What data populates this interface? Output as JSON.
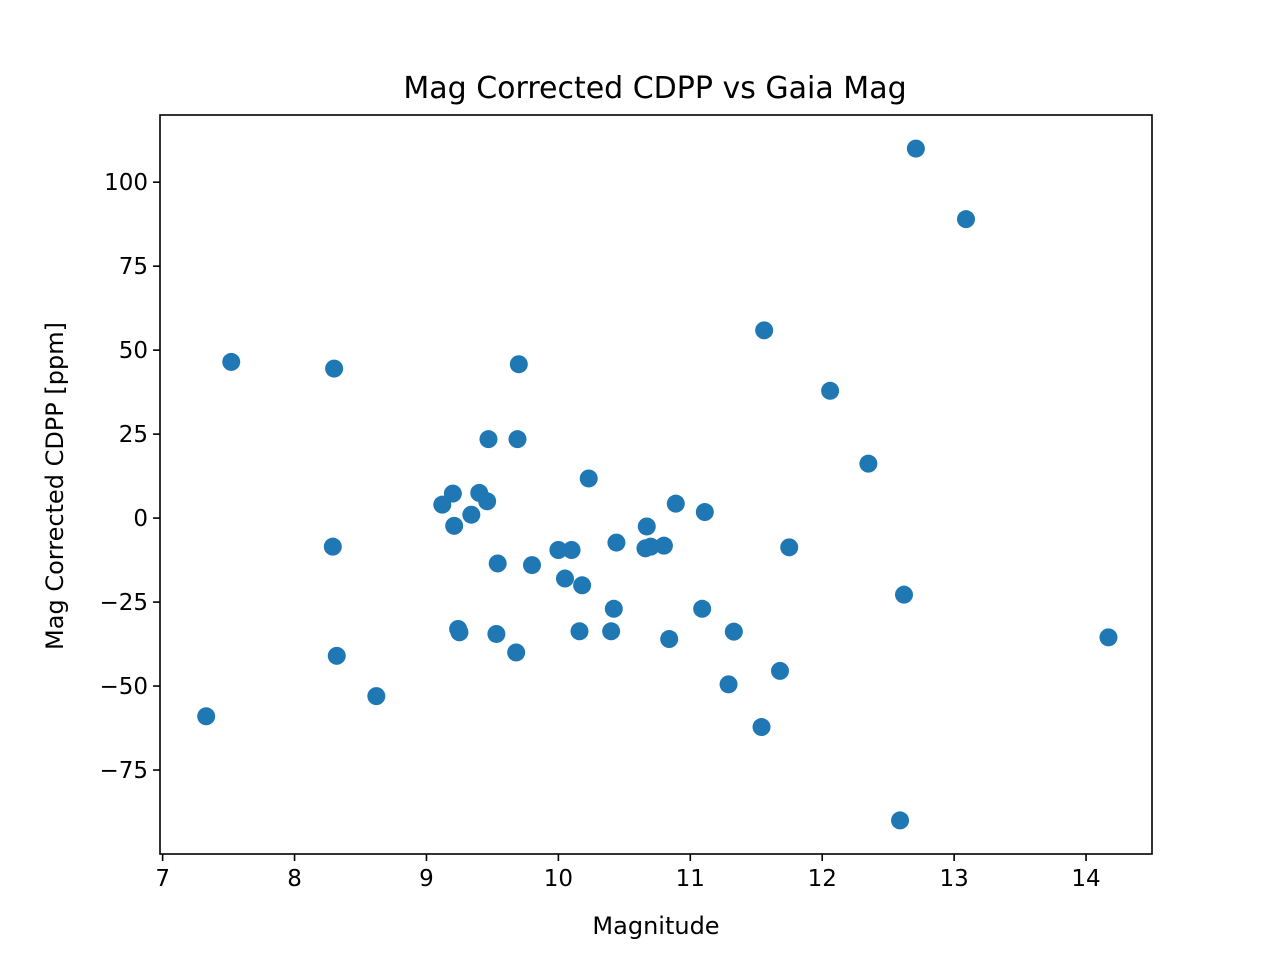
{
  "chart_data": {
    "type": "scatter",
    "title": "Mag Corrected CDPP vs Gaia Mag",
    "xlabel": "Magnitude",
    "ylabel": "Mag Corrected CDPP [ppm]",
    "xlim": [
      6.98,
      14.5
    ],
    "ylim": [
      -100,
      120
    ],
    "xticks": [
      7,
      8,
      9,
      10,
      11,
      12,
      13,
      14
    ],
    "yticks": [
      -75,
      -50,
      -25,
      0,
      25,
      50,
      75,
      100
    ],
    "ytick_labels": [
      "−75",
      "−50",
      "−25",
      "0",
      "25",
      "50",
      "75",
      "100"
    ],
    "grid": false,
    "marker_color": "#1f77b4",
    "points": [
      {
        "x": 7.33,
        "y": -59
      },
      {
        "x": 7.52,
        "y": 46.5
      },
      {
        "x": 8.29,
        "y": -8.5
      },
      {
        "x": 8.3,
        "y": 44.5
      },
      {
        "x": 8.32,
        "y": -41
      },
      {
        "x": 8.62,
        "y": -53
      },
      {
        "x": 9.12,
        "y": 4
      },
      {
        "x": 9.2,
        "y": 7.3
      },
      {
        "x": 9.21,
        "y": -2.3
      },
      {
        "x": 9.24,
        "y": -33
      },
      {
        "x": 9.25,
        "y": -34
      },
      {
        "x": 9.34,
        "y": 1
      },
      {
        "x": 9.4,
        "y": 7.5
      },
      {
        "x": 9.46,
        "y": 5
      },
      {
        "x": 9.47,
        "y": 23.5
      },
      {
        "x": 9.53,
        "y": -34.5
      },
      {
        "x": 9.54,
        "y": -13.5
      },
      {
        "x": 9.68,
        "y": -40
      },
      {
        "x": 9.69,
        "y": 23.5
      },
      {
        "x": 9.7,
        "y": 45.8
      },
      {
        "x": 9.8,
        "y": -14
      },
      {
        "x": 10.0,
        "y": -9.5
      },
      {
        "x": 10.05,
        "y": -18
      },
      {
        "x": 10.1,
        "y": -9.5
      },
      {
        "x": 10.16,
        "y": -33.7
      },
      {
        "x": 10.18,
        "y": -20
      },
      {
        "x": 10.23,
        "y": 11.8
      },
      {
        "x": 10.4,
        "y": -33.7
      },
      {
        "x": 10.42,
        "y": -27
      },
      {
        "x": 10.44,
        "y": -7.3
      },
      {
        "x": 10.66,
        "y": -9
      },
      {
        "x": 10.67,
        "y": -2.5
      },
      {
        "x": 10.7,
        "y": -8.5
      },
      {
        "x": 10.8,
        "y": -8.2
      },
      {
        "x": 10.84,
        "y": -36
      },
      {
        "x": 10.89,
        "y": 4.3
      },
      {
        "x": 11.09,
        "y": -27
      },
      {
        "x": 11.11,
        "y": 1.8
      },
      {
        "x": 11.29,
        "y": -49.5
      },
      {
        "x": 11.33,
        "y": -33.8
      },
      {
        "x": 11.54,
        "y": -62.2
      },
      {
        "x": 11.56,
        "y": 55.9
      },
      {
        "x": 11.68,
        "y": -45.5
      },
      {
        "x": 11.75,
        "y": -8.7
      },
      {
        "x": 12.06,
        "y": 37.9
      },
      {
        "x": 12.35,
        "y": 16.2
      },
      {
        "x": 12.59,
        "y": -90
      },
      {
        "x": 12.62,
        "y": -22.8
      },
      {
        "x": 12.71,
        "y": 110
      },
      {
        "x": 13.09,
        "y": 89
      },
      {
        "x": 14.17,
        "y": -35.5
      }
    ]
  }
}
